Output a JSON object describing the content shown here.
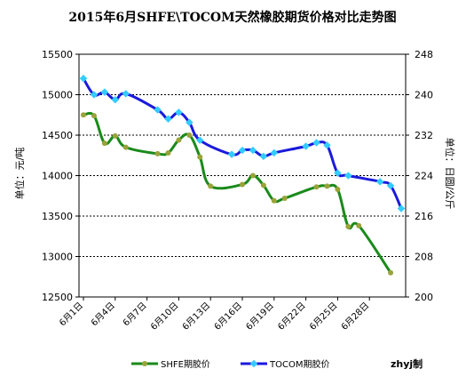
{
  "chart_data": {
    "type": "line",
    "title": "2015年6月SHFE\\TOCOM天然橡胶期货价格对比走势图",
    "ylabel_left": "单位：元/吨",
    "ylabel_right": "单位：日圆/公斤",
    "credit": "zhyj制",
    "left_axis": {
      "min": 12500,
      "max": 15500,
      "ticks": [
        12500,
        13000,
        13500,
        14000,
        14500,
        15000,
        15500
      ]
    },
    "right_axis": {
      "min": 200,
      "max": 248,
      "ticks": [
        200,
        208,
        216,
        224,
        232,
        240,
        248
      ]
    },
    "x_ticks": [
      {
        "x": 1,
        "label": "6月1日"
      },
      {
        "x": 4,
        "label": "6月4日"
      },
      {
        "x": 7,
        "label": "6月7日"
      },
      {
        "x": 10,
        "label": "6月10日"
      },
      {
        "x": 13,
        "label": "6月13日"
      },
      {
        "x": 16,
        "label": "6月16日"
      },
      {
        "x": 19,
        "label": "6月19日"
      },
      {
        "x": 22,
        "label": "6月22日"
      },
      {
        "x": 25,
        "label": "6月25日"
      },
      {
        "x": 28,
        "label": "6月28日"
      }
    ],
    "x_range": [
      1,
      31
    ],
    "grid": true,
    "legend_position": "bottom",
    "series": [
      {
        "name": "SHFE期胶价",
        "axis": "left",
        "color": "#1a8a1a",
        "marker_color": "#9aa33a",
        "x": [
          1,
          2,
          3,
          4,
          5,
          8,
          9,
          10,
          11,
          12,
          13,
          16,
          17,
          18,
          19,
          20,
          23,
          24,
          25,
          26,
          27,
          30
        ],
        "values": [
          14750,
          14740,
          14400,
          14490,
          14350,
          14270,
          14280,
          14440,
          14500,
          14230,
          13870,
          13890,
          14000,
          13880,
          13690,
          13720,
          13860,
          13870,
          13830,
          13370,
          13380,
          12800
        ]
      },
      {
        "name": "TOCOM期胶价",
        "axis": "right",
        "color": "#1a1adc",
        "marker_color": "#33ccff",
        "x": [
          1,
          2,
          3,
          4,
          5,
          8,
          9,
          10,
          11,
          12,
          15,
          16,
          17,
          18,
          19,
          22,
          23,
          24,
          25,
          26,
          29,
          30,
          31
        ],
        "values": [
          243.2,
          240.0,
          240.5,
          239.0,
          240.2,
          237.0,
          235.2,
          236.5,
          234.5,
          231.0,
          228.2,
          229.0,
          229.0,
          227.8,
          228.5,
          229.8,
          230.5,
          230.0,
          224.5,
          224.0,
          222.8,
          222.0,
          217.5
        ]
      }
    ]
  }
}
